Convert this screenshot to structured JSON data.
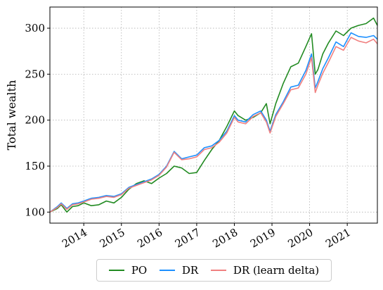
{
  "chart_data": {
    "type": "line",
    "title": "",
    "xlabel": "",
    "ylabel": "Total wealth",
    "xlim": [
      2013.1,
      2021.8
    ],
    "ylim": [
      88,
      323
    ],
    "x_ticks": [
      "2014",
      "2015",
      "2016",
      "2017",
      "2018",
      "2019",
      "2020",
      "2021"
    ],
    "y_ticks": [
      100,
      150,
      200,
      250,
      300
    ],
    "grid": true,
    "legend_position": "below",
    "series": [
      {
        "name": "PO",
        "color": "#228B22",
        "x": [
          2013.1,
          2013.3,
          2013.4,
          2013.55,
          2013.7,
          2013.85,
          2014.0,
          2014.2,
          2014.4,
          2014.6,
          2014.8,
          2015.0,
          2015.2,
          2015.4,
          2015.6,
          2015.8,
          2016.0,
          2016.2,
          2016.4,
          2016.6,
          2016.8,
          2017.0,
          2017.2,
          2017.4,
          2017.6,
          2017.8,
          2018.0,
          2018.1,
          2018.3,
          2018.5,
          2018.7,
          2018.85,
          2018.95,
          2019.1,
          2019.3,
          2019.5,
          2019.7,
          2019.9,
          2020.05,
          2020.15,
          2020.22,
          2020.35,
          2020.5,
          2020.7,
          2020.9,
          2021.1,
          2021.3,
          2021.5,
          2021.7,
          2021.8
        ],
        "values": [
          100,
          104,
          108,
          100,
          106,
          107,
          110,
          107,
          108,
          112,
          110,
          116,
          125,
          131,
          134,
          131,
          137,
          142,
          150,
          148,
          142,
          143,
          156,
          168,
          178,
          193,
          210,
          205,
          200,
          203,
          208,
          218,
          196,
          218,
          240,
          258,
          262,
          280,
          294,
          250,
          255,
          272,
          284,
          297,
          292,
          300,
          303,
          305,
          311,
          303
        ]
      },
      {
        "name": "DR",
        "color": "#1E90FF",
        "x": [
          2013.1,
          2013.3,
          2013.4,
          2013.55,
          2013.7,
          2013.85,
          2014.0,
          2014.2,
          2014.4,
          2014.6,
          2014.8,
          2015.0,
          2015.2,
          2015.4,
          2015.6,
          2015.8,
          2016.0,
          2016.2,
          2016.4,
          2016.6,
          2016.8,
          2017.0,
          2017.2,
          2017.4,
          2017.6,
          2017.8,
          2018.0,
          2018.1,
          2018.3,
          2018.5,
          2018.7,
          2018.85,
          2018.95,
          2019.1,
          2019.3,
          2019.5,
          2019.7,
          2019.9,
          2020.05,
          2020.15,
          2020.22,
          2020.35,
          2020.5,
          2020.7,
          2020.9,
          2021.1,
          2021.3,
          2021.5,
          2021.7,
          2021.8
        ],
        "values": [
          100,
          106,
          110,
          104,
          109,
          110,
          112,
          115,
          116,
          118,
          117,
          120,
          127,
          130,
          133,
          136,
          141,
          150,
          166,
          158,
          160,
          162,
          170,
          172,
          178,
          188,
          205,
          200,
          198,
          206,
          210,
          200,
          188,
          206,
          220,
          236,
          238,
          254,
          272,
          235,
          242,
          256,
          268,
          285,
          280,
          295,
          291,
          290,
          292,
          288
        ]
      },
      {
        "name": "DR (learn delta)",
        "color": "#F08080",
        "x": [
          2013.1,
          2013.3,
          2013.4,
          2013.55,
          2013.7,
          2013.85,
          2014.0,
          2014.2,
          2014.4,
          2014.6,
          2014.8,
          2015.0,
          2015.2,
          2015.4,
          2015.6,
          2015.8,
          2016.0,
          2016.2,
          2016.4,
          2016.6,
          2016.8,
          2017.0,
          2017.2,
          2017.4,
          2017.6,
          2017.8,
          2018.0,
          2018.1,
          2018.3,
          2018.5,
          2018.7,
          2018.85,
          2018.95,
          2019.1,
          2019.3,
          2019.5,
          2019.7,
          2019.9,
          2020.05,
          2020.15,
          2020.22,
          2020.35,
          2020.5,
          2020.7,
          2020.9,
          2021.1,
          2021.3,
          2021.5,
          2021.7,
          2021.8
        ],
        "values": [
          100,
          105,
          109,
          103,
          108,
          109,
          111,
          114,
          115,
          117,
          116,
          119,
          126,
          129,
          132,
          135,
          140,
          149,
          165,
          157,
          158,
          160,
          168,
          170,
          176,
          186,
          203,
          198,
          196,
          204,
          208,
          198,
          186,
          204,
          218,
          233,
          235,
          250,
          268,
          230,
          238,
          251,
          263,
          280,
          276,
          290,
          286,
          284,
          288,
          283
        ]
      }
    ]
  }
}
